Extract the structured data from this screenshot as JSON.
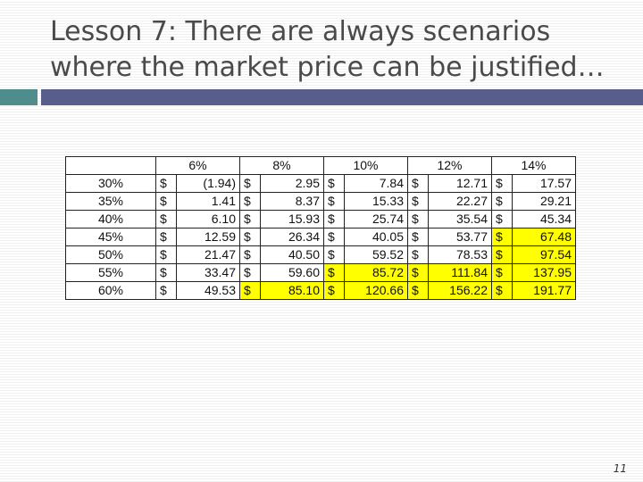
{
  "slide": {
    "title_line1": "Lesson 7: There are always scenarios",
    "title_line2": "where the market price can be justified…",
    "page_number": "11",
    "accent_colors": {
      "left_bar": "#4f8c8c",
      "right_bar": "#575e8c",
      "highlight": "#ffff00"
    }
  },
  "table": {
    "corner": "",
    "columns": [
      "6%",
      "8%",
      "10%",
      "12%",
      "14%"
    ],
    "currency": "$",
    "rows": [
      {
        "label": "30%",
        "values": [
          "(1.94)",
          "2.95",
          "7.84",
          "12.71",
          "17.57"
        ],
        "highlighted": [
          false,
          false,
          false,
          false,
          false
        ]
      },
      {
        "label": "35%",
        "values": [
          "1.41",
          "8.37",
          "15.33",
          "22.27",
          "29.21"
        ],
        "highlighted": [
          false,
          false,
          false,
          false,
          false
        ]
      },
      {
        "label": "40%",
        "values": [
          "6.10",
          "15.93",
          "25.74",
          "35.54",
          "45.34"
        ],
        "highlighted": [
          false,
          false,
          false,
          false,
          false
        ]
      },
      {
        "label": "45%",
        "values": [
          "12.59",
          "26.34",
          "40.05",
          "53.77",
          "67.48"
        ],
        "highlighted": [
          false,
          false,
          false,
          false,
          true
        ]
      },
      {
        "label": "50%",
        "values": [
          "21.47",
          "40.50",
          "59.52",
          "78.53",
          "97.54"
        ],
        "highlighted": [
          false,
          false,
          false,
          false,
          true
        ]
      },
      {
        "label": "55%",
        "values": [
          "33.47",
          "59.60",
          "85.72",
          "111.84",
          "137.95"
        ],
        "highlighted": [
          false,
          false,
          true,
          true,
          true
        ]
      },
      {
        "label": "60%",
        "values": [
          "49.53",
          "85.10",
          "120.66",
          "156.22",
          "191.77"
        ],
        "highlighted": [
          false,
          true,
          true,
          true,
          true
        ]
      }
    ]
  }
}
